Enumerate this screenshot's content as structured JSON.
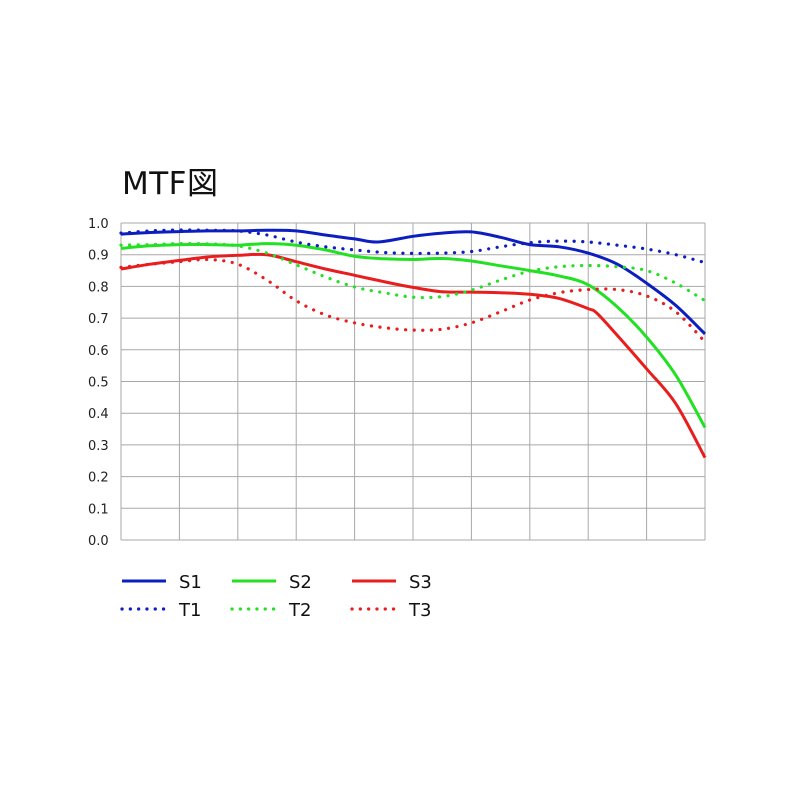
{
  "chart_data": {
    "type": "line",
    "title": "MTF図",
    "xlabel": "",
    "ylabel": "",
    "xlim": [
      0,
      20
    ],
    "ylim": [
      0,
      1.0
    ],
    "yticks": [
      "0.0",
      "0.1",
      "0.2",
      "0.3",
      "0.4",
      "0.5",
      "0.6",
      "0.7",
      "0.8",
      "0.9",
      "1.0"
    ],
    "grid": true,
    "legend_position": "bottom",
    "series": [
      {
        "name": "S1",
        "color": "#0d1ec0",
        "style": "solid",
        "x": [
          0,
          1,
          2,
          3,
          4,
          5,
          6,
          7,
          8,
          8.8,
          10,
          11,
          12,
          13,
          14,
          15,
          16,
          17,
          18,
          19,
          20
        ],
        "y": [
          0.965,
          0.97,
          0.973,
          0.975,
          0.975,
          0.977,
          0.975,
          0.962,
          0.95,
          0.94,
          0.958,
          0.968,
          0.972,
          0.955,
          0.932,
          0.925,
          0.905,
          0.87,
          0.81,
          0.74,
          0.65
        ]
      },
      {
        "name": "S2",
        "color": "#22e022",
        "style": "solid",
        "x": [
          0,
          1,
          2,
          3,
          4,
          5,
          6,
          7,
          8,
          9,
          10,
          11,
          12,
          13,
          14,
          15,
          16,
          17,
          18,
          19,
          20
        ],
        "y": [
          0.92,
          0.928,
          0.932,
          0.932,
          0.93,
          0.935,
          0.93,
          0.915,
          0.895,
          0.887,
          0.885,
          0.888,
          0.88,
          0.865,
          0.85,
          0.833,
          0.805,
          0.735,
          0.64,
          0.52,
          0.355
        ]
      },
      {
        "name": "S3",
        "color": "#e81e1e",
        "style": "solid",
        "x": [
          0,
          1,
          2,
          3,
          4,
          5,
          6,
          7,
          8,
          9,
          10,
          11,
          12,
          13,
          14,
          15,
          16,
          16.3,
          17,
          18,
          19,
          20
        ],
        "y": [
          0.855,
          0.87,
          0.882,
          0.893,
          0.898,
          0.9,
          0.878,
          0.855,
          0.835,
          0.815,
          0.797,
          0.783,
          0.782,
          0.78,
          0.775,
          0.762,
          0.73,
          0.715,
          0.645,
          0.54,
          0.43,
          0.26
        ]
      },
      {
        "name": "T1",
        "color": "#0d1ec0",
        "style": "dotted",
        "x": [
          0,
          1,
          2,
          3,
          4,
          5,
          6,
          7,
          8,
          9,
          10,
          11,
          12,
          13,
          14,
          15,
          16,
          17,
          18,
          19,
          20
        ],
        "y": [
          0.968,
          0.975,
          0.978,
          0.977,
          0.975,
          0.962,
          0.94,
          0.925,
          0.915,
          0.907,
          0.904,
          0.905,
          0.91,
          0.925,
          0.938,
          0.943,
          0.94,
          0.93,
          0.918,
          0.9,
          0.875
        ]
      },
      {
        "name": "T2",
        "color": "#22e022",
        "style": "dotted",
        "x": [
          0,
          1,
          2,
          3,
          4,
          5,
          6,
          7,
          8,
          9,
          10,
          11,
          12,
          13,
          14,
          15,
          16,
          17,
          18,
          19,
          20
        ],
        "y": [
          0.93,
          0.932,
          0.935,
          0.934,
          0.928,
          0.905,
          0.868,
          0.83,
          0.798,
          0.78,
          0.766,
          0.768,
          0.788,
          0.82,
          0.848,
          0.862,
          0.866,
          0.862,
          0.85,
          0.81,
          0.755
        ]
      },
      {
        "name": "T3",
        "color": "#e81e1e",
        "style": "dotted",
        "x": [
          0,
          1,
          2,
          3,
          4,
          5,
          6,
          7,
          8,
          9,
          10,
          11,
          12,
          13,
          14,
          15,
          16,
          17,
          18,
          19,
          20
        ],
        "y": [
          0.86,
          0.87,
          0.878,
          0.885,
          0.87,
          0.82,
          0.755,
          0.71,
          0.685,
          0.67,
          0.662,
          0.665,
          0.685,
          0.72,
          0.757,
          0.78,
          0.79,
          0.79,
          0.77,
          0.72,
          0.625
        ]
      }
    ]
  }
}
